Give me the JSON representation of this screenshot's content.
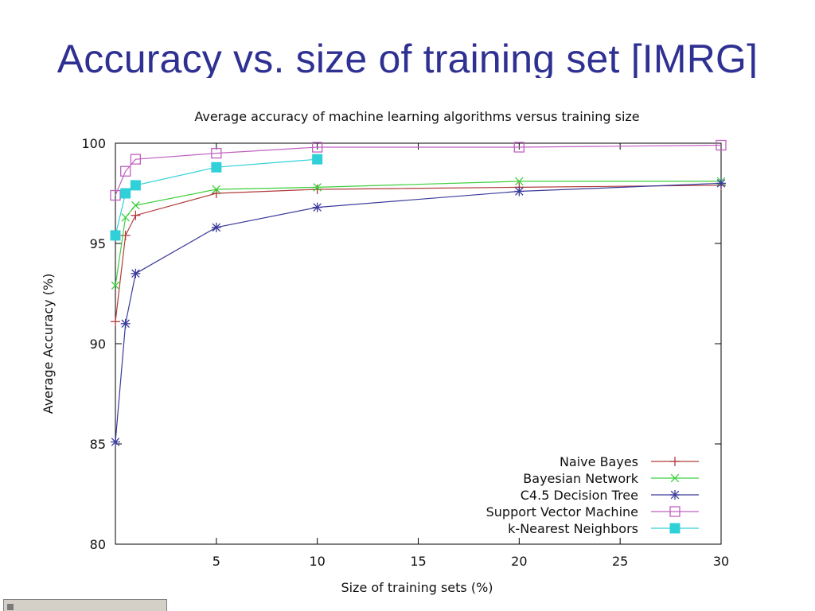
{
  "slide": {
    "title": "Accuracy vs. size of training set [IMRG]"
  },
  "colors": {
    "title": "#2f3192",
    "axis": "#000000"
  },
  "chart_data": {
    "type": "line",
    "title": "Average accuracy of machine learning algorithms versus training size",
    "xlabel": "Size of training sets (%)",
    "ylabel": "Average Accuracy (%)",
    "xlim": [
      0,
      30
    ],
    "ylim": [
      80,
      100
    ],
    "xticks": [
      5,
      10,
      15,
      20,
      25,
      30
    ],
    "yticks": [
      80,
      85,
      90,
      95,
      100
    ],
    "grid": false,
    "legend_position": "bottom-right",
    "series": [
      {
        "name": "Naive Bayes",
        "color": "#b23a3a",
        "marker": "plus",
        "x": [
          0,
          0.5,
          1,
          5,
          10,
          20,
          30
        ],
        "y": [
          91.1,
          95.4,
          96.4,
          97.5,
          97.7,
          97.8,
          97.9
        ]
      },
      {
        "name": "Bayesian Network",
        "color": "#3ccf3c",
        "marker": "x",
        "x": [
          0,
          0.5,
          1,
          5,
          10,
          20,
          30
        ],
        "y": [
          92.9,
          96.3,
          96.9,
          97.7,
          97.8,
          98.1,
          98.1
        ]
      },
      {
        "name": "C4.5 Decision Tree",
        "color": "#3a3a9a",
        "marker": "asterisk",
        "x": [
          0,
          0.5,
          1,
          5,
          10,
          20,
          30
        ],
        "y": [
          85.1,
          91.0,
          93.5,
          95.8,
          96.8,
          97.6,
          98.0
        ]
      },
      {
        "name": "Support Vector Machine",
        "color": "#c060c0",
        "marker": "open-square",
        "x": [
          0,
          0.5,
          1,
          5,
          10,
          20,
          30
        ],
        "y": [
          97.4,
          98.6,
          99.2,
          99.5,
          99.8,
          99.8,
          99.9
        ]
      },
      {
        "name": "k-Nearest Neighbors",
        "color": "#30d0d8",
        "marker": "filled-square",
        "x": [
          0,
          0.5,
          1,
          5,
          10
        ],
        "y": [
          95.4,
          97.5,
          97.9,
          98.8,
          99.2
        ]
      }
    ]
  }
}
